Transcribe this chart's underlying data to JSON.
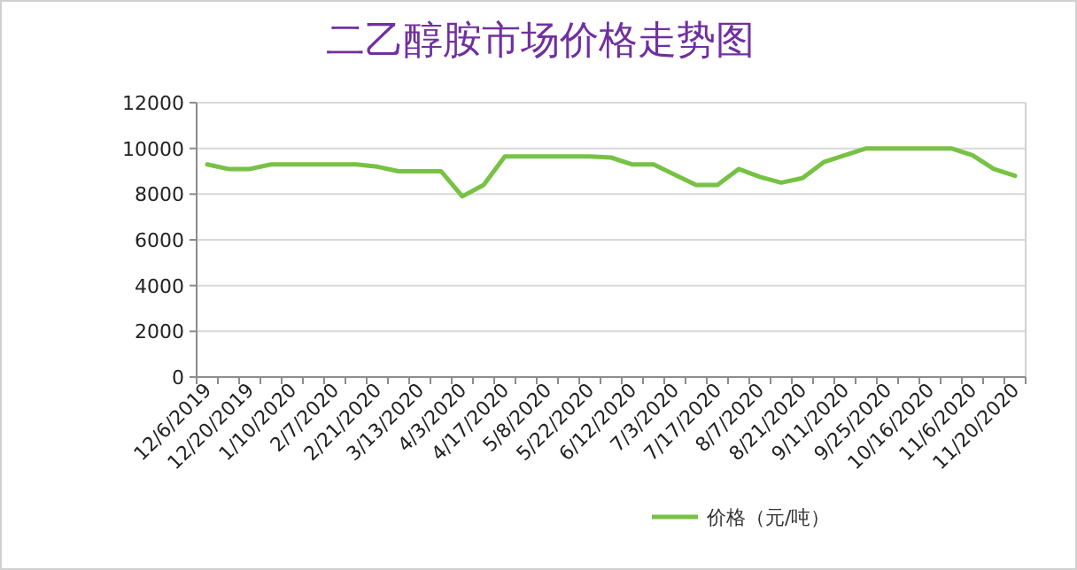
{
  "chart_data": {
    "type": "line",
    "title": "二乙醇胺市场价格走势图",
    "categories": [
      "12/6/2019",
      null,
      "12/20/2019",
      null,
      "1/10/2020",
      null,
      "2/7/2020",
      null,
      "2/21/2020",
      null,
      "3/13/2020",
      null,
      "4/3/2020",
      null,
      "4/17/2020",
      null,
      "5/8/2020",
      null,
      "5/22/2020",
      null,
      "6/12/2020",
      null,
      "7/3/2020",
      null,
      "7/17/2020",
      null,
      "8/7/2020",
      null,
      "8/21/2020",
      null,
      "9/11/2020",
      null,
      "9/25/2020",
      null,
      "10/16/2020",
      null,
      "11/6/2020",
      null,
      "11/20/2020"
    ],
    "series": [
      {
        "name": "价格（元/吨）",
        "color": "#77c244",
        "values": [
          9300,
          9100,
          9100,
          9300,
          9300,
          9300,
          9300,
          9300,
          9200,
          9000,
          9000,
          9000,
          7900,
          8400,
          9650,
          9650,
          9650,
          9650,
          9650,
          9600,
          9300,
          9300,
          8850,
          8400,
          8400,
          9100,
          8750,
          8500,
          8700,
          9400,
          9700,
          10000,
          10000,
          10000,
          10000,
          10000,
          9700,
          9100,
          8800
        ]
      }
    ],
    "ylim": [
      0,
      12000
    ],
    "yticks": [
      0,
      2000,
      4000,
      6000,
      8000,
      10000,
      12000
    ],
    "grid": "y",
    "legend": "bottom"
  }
}
